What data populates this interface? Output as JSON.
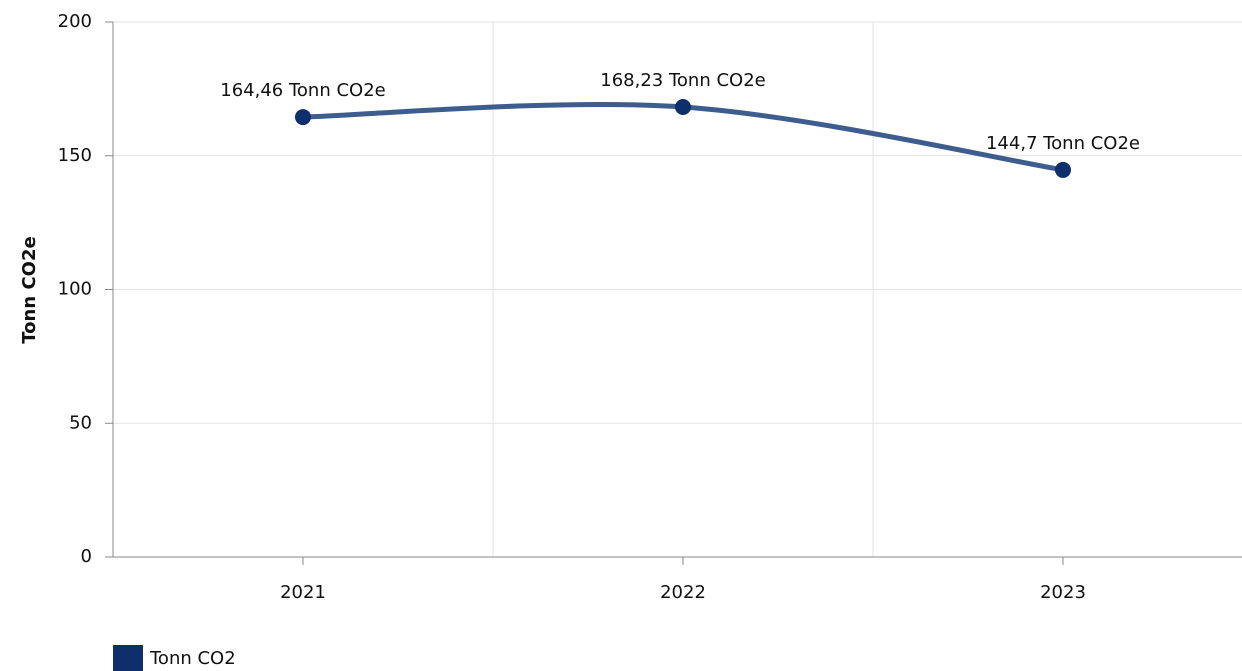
{
  "chart_data": {
    "type": "line",
    "y_axis_title": "Tonn CO2e",
    "categories": [
      "2021",
      "2022",
      "2023"
    ],
    "series": [
      {
        "name": "Tonn CO2",
        "color": "#0e2f6b",
        "line_color": "#3d5d8f",
        "values": [
          164.46,
          168.23,
          144.7
        ],
        "value_labels": [
          "164,46 Tonn CO2e",
          "168,23 Tonn CO2e",
          "144,7 Tonn CO2e"
        ]
      }
    ],
    "ylim": [
      0,
      200
    ],
    "yticks": [
      0,
      50,
      100,
      150,
      200
    ],
    "grid": true,
    "x_grid": true,
    "smooth": true,
    "legend": "bottom-left"
  }
}
